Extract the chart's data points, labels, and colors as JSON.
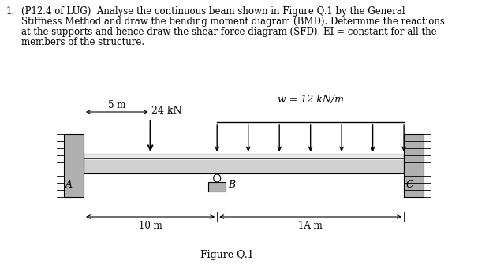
{
  "title_number": "1.",
  "title_text_line1": "(P12.4 of LUG)  Analyse the continuous beam shown in Figure Q.1 by the General",
  "title_text_line2": "Stiffness Method and draw the bending moment diagram (BMD). Determine the reactions",
  "title_text_line3": "at the supports and hence draw the shear force diagram (SFD). EI = constant for all the",
  "title_text_line4": "members of the structure.",
  "figure_caption": "Figure Q.1",
  "beam_color": "#d0d0d0",
  "beam_top_color": "#e8e8e8",
  "wall_color": "#b0b0b0",
  "label_A": "A",
  "label_B": "B",
  "label_C": "C",
  "load_point_label": "24 kN",
  "load_dist_label": "w = 12 kN/m",
  "dim_5m": "5 m",
  "dim_10m": "10 m",
  "dim_1Am": "1A m",
  "background_color": "#ffffff",
  "text_color": "#000000",
  "fontsize_body": 8.5,
  "fontsize_label": 9,
  "fontsize_dim": 8.5
}
